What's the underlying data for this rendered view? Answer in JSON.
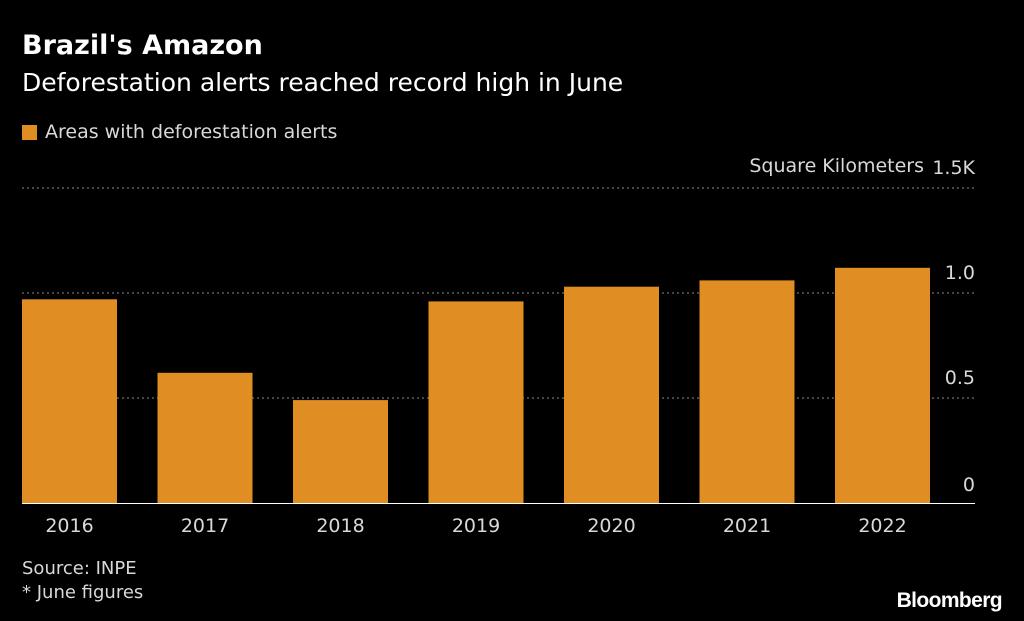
{
  "header": {
    "title": "Brazil's Amazon",
    "subtitle": "Deforestation alerts reached record high in June"
  },
  "legend": {
    "label": "Areas with deforestation alerts"
  },
  "units_label": "Square Kilometers",
  "footer": {
    "source": "Source: INPE",
    "note": "* June figures",
    "brand": "Bloomberg"
  },
  "colors": {
    "background": "#000000",
    "bar": "#e08e24",
    "gridline": "#8c8c8c",
    "axis_text": "#d9d9d9"
  },
  "chart_data": {
    "type": "bar",
    "title": "Brazil's Amazon",
    "subtitle": "Deforestation alerts reached record high in June",
    "ylabel": "Square Kilometers",
    "categories": [
      "2016",
      "2017",
      "2018",
      "2019",
      "2020",
      "2021",
      "2022"
    ],
    "series": [
      {
        "name": "Areas with deforestation alerts",
        "values": [
          0.97,
          0.62,
          0.49,
          0.96,
          1.03,
          1.06,
          1.12
        ]
      }
    ],
    "ylim": [
      0,
      1.5
    ],
    "yticks": [
      0,
      0.5,
      1.0,
      1.5
    ],
    "ytick_labels": [
      "0",
      "0.5",
      "1.0",
      "1.5K"
    ],
    "grid": true,
    "legend_position": "top-left"
  }
}
